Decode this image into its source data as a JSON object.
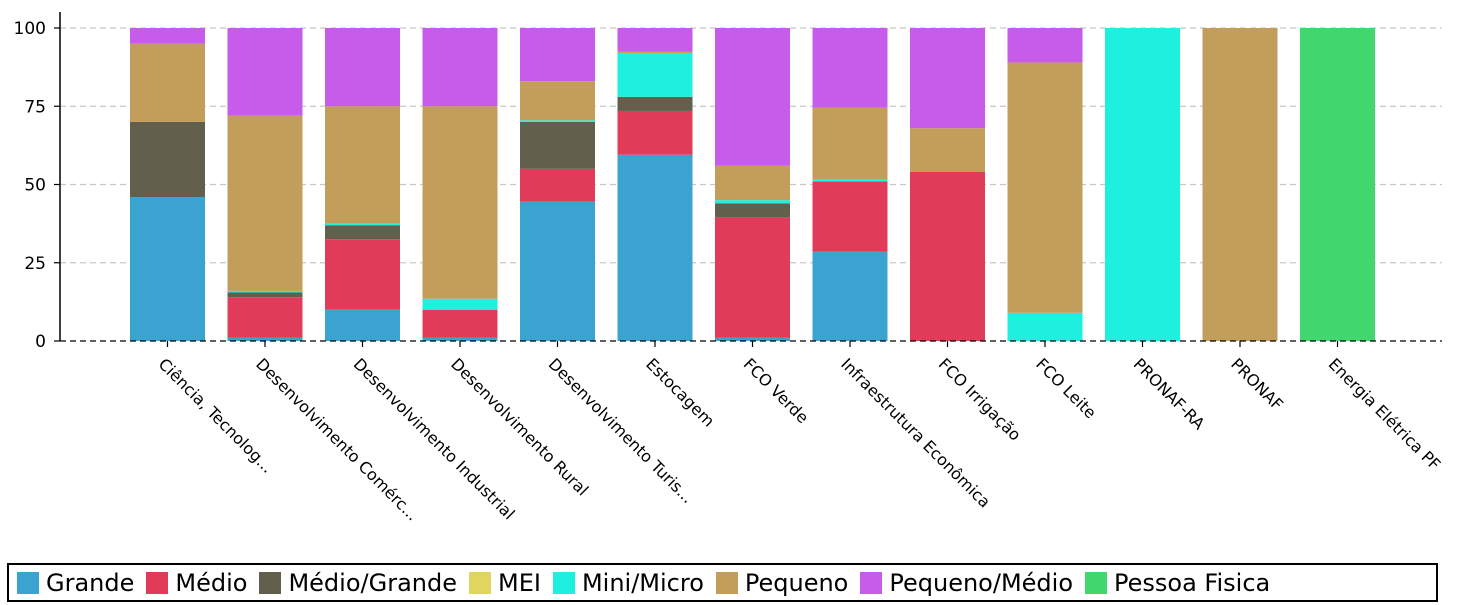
{
  "chart_data": {
    "type": "bar",
    "stacked": true,
    "title": "",
    "xlabel": "",
    "ylabel": "",
    "ylim": [
      0,
      100
    ],
    "yticks": [
      0,
      25,
      50,
      75,
      100
    ],
    "grid": "horizontal-dashed",
    "legend_position": "bottom",
    "categories": [
      "Ciência, Tecnolog...",
      "Desenvolvimento Comérc...",
      "Desenvolvimento Industrial",
      "Desenvolvimento Rural",
      "Desenvolvimento Turis...",
      "Estocagem",
      "FCO Verde",
      "Infraestrutura Econômica",
      "FCO Irrigação",
      "FCO Leite",
      "PRONAF-RA",
      "PRONAF",
      "Energia Elétrica PF"
    ],
    "series": [
      {
        "name": "Grande",
        "color": "#3ba3d0",
        "values": [
          46,
          1,
          10,
          1,
          44.5,
          59.5,
          1,
          28.5,
          0,
          0,
          0,
          0,
          0
        ]
      },
      {
        "name": "Médio",
        "color": "#e03c5a",
        "values": [
          0,
          13,
          22.5,
          9,
          10.5,
          14,
          38.5,
          22.5,
          54,
          0,
          0,
          0,
          0
        ]
      },
      {
        "name": "Médio/Grande",
        "color": "#62604d",
        "values": [
          24,
          1.5,
          4.5,
          0,
          15,
          4.5,
          4.5,
          0,
          0,
          0,
          0,
          0,
          0
        ]
      },
      {
        "name": "MEI",
        "color": "#dfd55f",
        "values": [
          0,
          0,
          0,
          0,
          0,
          0,
          0,
          0,
          0,
          0,
          0,
          0,
          0
        ]
      },
      {
        "name": "Mini/Micro",
        "color": "#1ef0e0",
        "values": [
          0,
          0.5,
          0.5,
          3.5,
          0.5,
          14,
          1,
          0.5,
          0,
          9,
          100,
          0,
          0
        ]
      },
      {
        "name": "Pequeno",
        "color": "#c39e5b",
        "values": [
          25,
          56,
          37.5,
          61.5,
          12.5,
          0.5,
          11,
          23,
          14,
          80,
          0,
          100,
          0
        ]
      },
      {
        "name": "Pequeno/Médio",
        "color": "#c75bea",
        "values": [
          5,
          28,
          25,
          25,
          17,
          7.5,
          44,
          25.5,
          32,
          11,
          0,
          0,
          0
        ]
      },
      {
        "name": "Pessoa Fisica",
        "color": "#42d66f",
        "values": [
          0,
          0,
          0,
          0,
          0,
          0,
          0,
          0,
          0,
          0,
          0,
          0,
          100
        ]
      }
    ]
  }
}
